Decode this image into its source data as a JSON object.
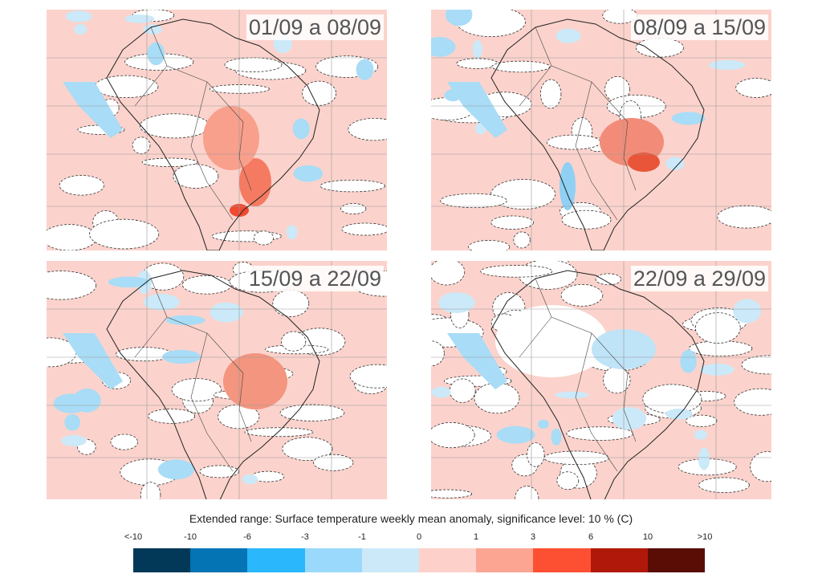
{
  "panels": [
    {
      "label": "01/09 a 08/09"
    },
    {
      "label": "08/09 a 15/09"
    },
    {
      "label": "15/09 a 22/09"
    },
    {
      "label": "22/09 a 29/09"
    }
  ],
  "legend": {
    "title": "Extended range: Surface temperature weekly mean anomaly, significance level: 10 % (C)",
    "ticks": [
      "<-10",
      "-10",
      "-6",
      "-3",
      "-1",
      "0",
      "1",
      "3",
      "6",
      "10",
      ">10"
    ],
    "colors": [
      "#023858",
      "#0474b4",
      "#2ab7fb",
      "#9ad9fb",
      "#cbe9f8",
      "#fdd1ca",
      "#fca593",
      "#fd5032",
      "#b0190a",
      "#5a0d05"
    ]
  }
}
